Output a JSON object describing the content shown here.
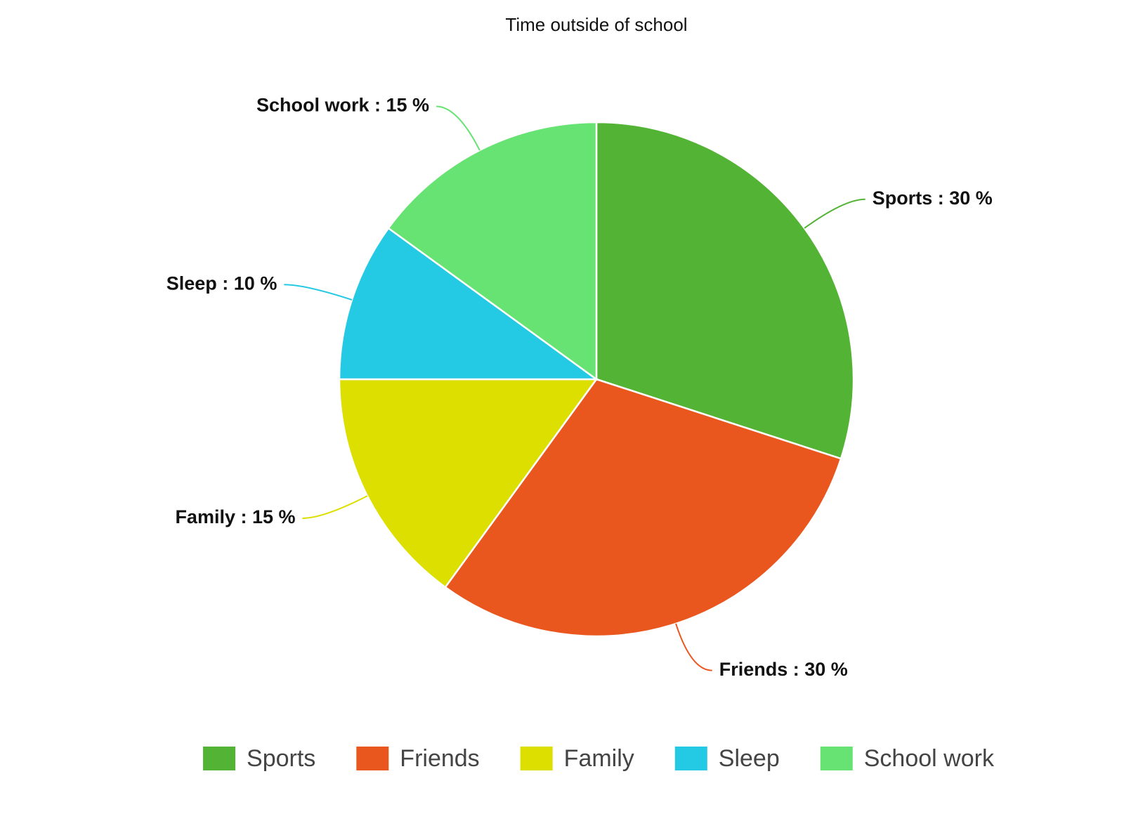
{
  "chart_data": {
    "type": "pie",
    "title": "Time outside of school",
    "categories": [
      "Sports",
      "Friends",
      "Family",
      "Sleep",
      "School work"
    ],
    "values": [
      30,
      30,
      15,
      10,
      15
    ],
    "value_labels": [
      "Sports : 30 %",
      "Friends : 30 %",
      "Family : 15 %",
      "Sleep : 10 %",
      "School work : 15 %"
    ],
    "colors": [
      "#53b335",
      "#ea571e",
      "#dcdf00",
      "#24c9e3",
      "#66e372"
    ],
    "legend": "bottom"
  }
}
